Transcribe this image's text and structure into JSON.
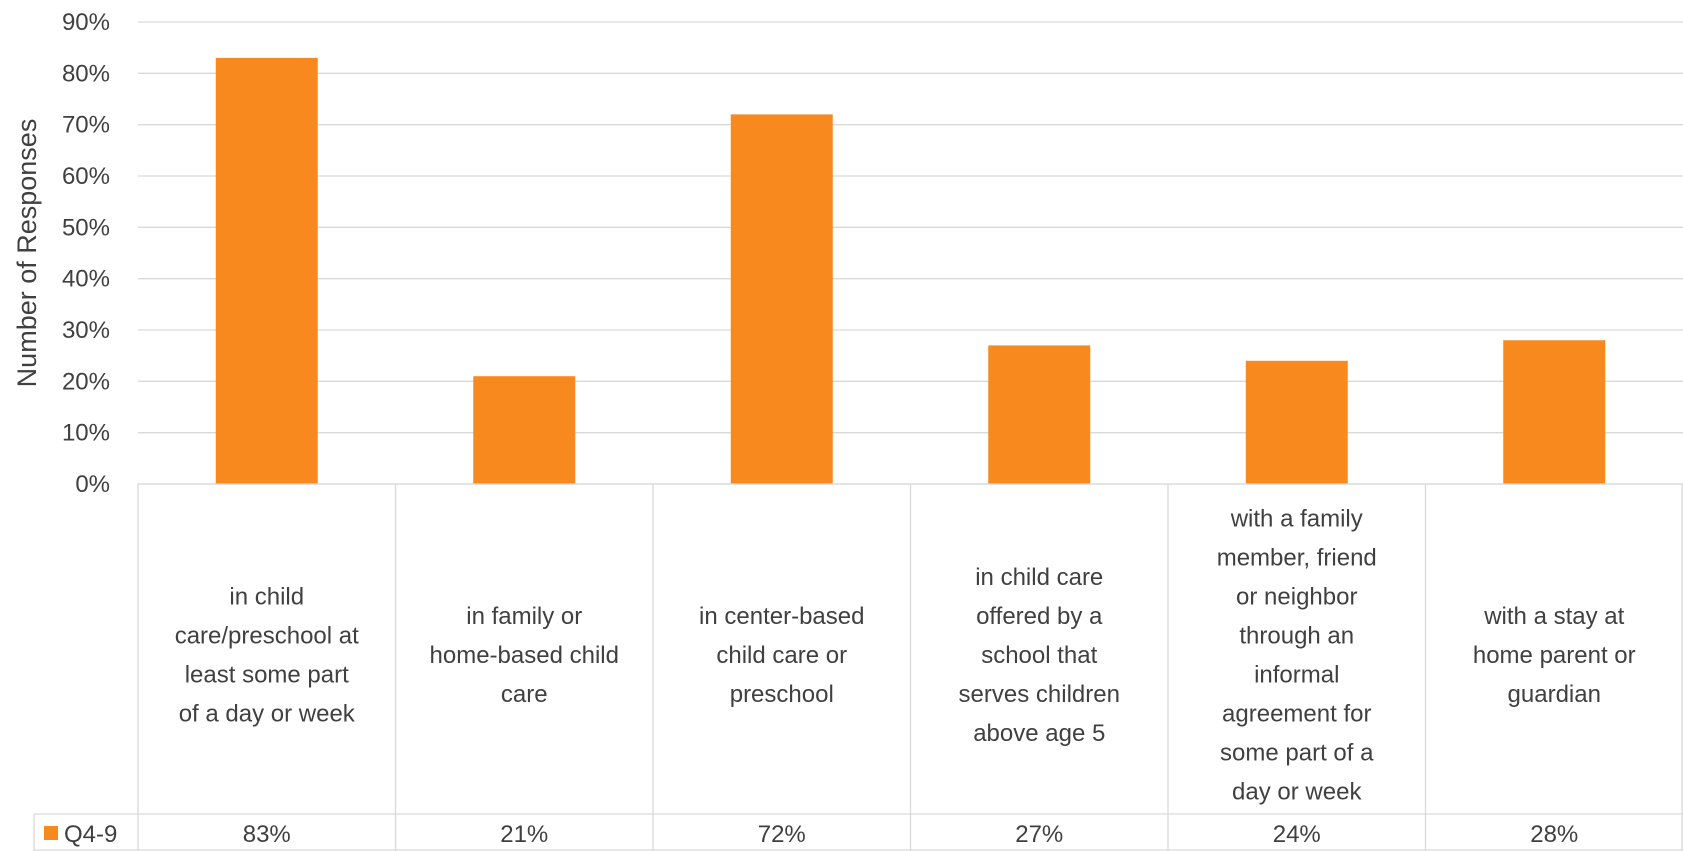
{
  "chart_data": {
    "type": "bar",
    "ylabel": "Number of Responses",
    "ylim": [
      0,
      90
    ],
    "yticks": [
      "0%",
      "10%",
      "20%",
      "30%",
      "40%",
      "50%",
      "60%",
      "70%",
      "80%",
      "90%"
    ],
    "grid": true,
    "data_table": true,
    "categories": [
      [
        "in child",
        "care/preschool at",
        "least some part",
        "of a day or week"
      ],
      [
        "in family or",
        "home-based child",
        "care"
      ],
      [
        "in center-based",
        "child care or",
        "preschool"
      ],
      [
        "in child care",
        "offered by a",
        "school that",
        "serves children",
        "above age 5"
      ],
      [
        "with a family",
        "member, friend",
        "or neighbor",
        "through an",
        "informal",
        "agreement for",
        "some part of a",
        "day or week"
      ],
      [
        "with a stay at",
        "home parent or",
        "guardian"
      ]
    ],
    "series": [
      {
        "name": "Q4-9",
        "color": "#F7891F",
        "values": [
          83,
          21,
          72,
          27,
          24,
          28
        ],
        "labels": [
          "83%",
          "21%",
          "72%",
          "27%",
          "24%",
          "28%"
        ]
      }
    ]
  }
}
